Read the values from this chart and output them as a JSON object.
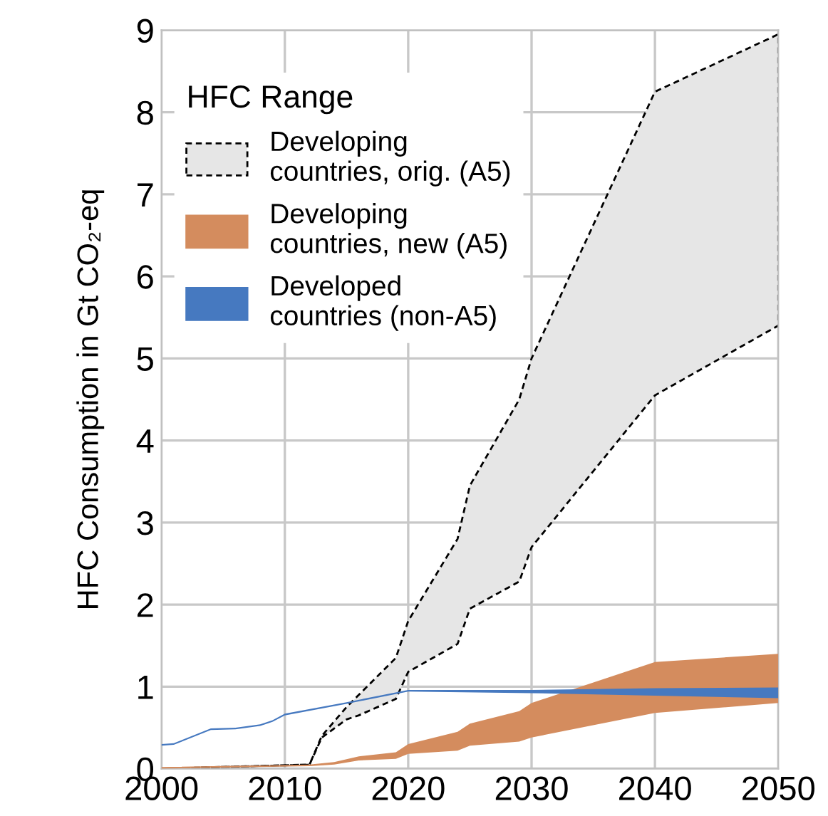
{
  "chart_data": {
    "type": "area",
    "ylabel": "HFC Consumption in Gt CO₂-eq",
    "legend_title": "HFC Range",
    "legend": "top left",
    "grid": true,
    "xlim": [
      2000,
      2050
    ],
    "xticks": [
      2000,
      2010,
      2020,
      2030,
      2040,
      2050
    ],
    "ylim": [
      0,
      9
    ],
    "yticks": [
      0,
      1,
      2,
      3,
      4,
      5,
      6,
      7,
      8,
      9
    ],
    "series": [
      {
        "name": "Developing countries, orig. (A5)",
        "color": "#e6e6e6",
        "line_style": "dashed",
        "x": [
          2000,
          2012,
          2013,
          2015,
          2016,
          2019,
          2020,
          2024,
          2025,
          2029,
          2030,
          2040,
          2050
        ],
        "values": [
          null,
          null,
          null,
          null,
          null,
          null,
          null,
          null,
          null,
          null,
          null,
          null,
          null
        ],
        "upper": [
          0,
          0.05,
          0.4,
          0.75,
          0.9,
          1.35,
          1.8,
          2.8,
          3.45,
          4.5,
          5.0,
          8.25,
          8.95
        ],
        "lower": [
          0,
          0.05,
          0.38,
          0.6,
          0.65,
          0.85,
          1.18,
          1.52,
          1.95,
          2.28,
          2.7,
          4.55,
          5.4
        ]
      },
      {
        "name": "Developing countries, new (A5)",
        "color": "#d48c5e",
        "x": [
          2000,
          2012,
          2014,
          2016,
          2019,
          2020,
          2024,
          2025,
          2029,
          2030,
          2040,
          2050
        ],
        "values": [
          null,
          null,
          null,
          null,
          null,
          null,
          null,
          null,
          null,
          null,
          null,
          null
        ],
        "upper": [
          0.02,
          0.05,
          0.08,
          0.15,
          0.2,
          0.3,
          0.45,
          0.55,
          0.7,
          0.8,
          1.3,
          1.4
        ],
        "lower": [
          0,
          0.03,
          0.05,
          0.1,
          0.12,
          0.18,
          0.22,
          0.28,
          0.33,
          0.38,
          0.68,
          0.8
        ]
      },
      {
        "name": "Developed countries (non-A5)",
        "color": "#4679c0",
        "x": [
          2000,
          2001,
          2004,
          2006,
          2008,
          2009,
          2010,
          2015,
          2020,
          2030,
          2040,
          2050
        ],
        "values": [
          null,
          null,
          null,
          null,
          null,
          null,
          null,
          null,
          null,
          null,
          null,
          null
        ],
        "upper": [
          0.3,
          0.31,
          0.49,
          0.5,
          0.54,
          0.59,
          0.67,
          0.81,
          0.96,
          0.96,
          0.98,
          0.99
        ],
        "lower": [
          0.28,
          0.29,
          0.47,
          0.48,
          0.52,
          0.57,
          0.65,
          0.79,
          0.94,
          0.92,
          0.89,
          0.86
        ]
      }
    ]
  }
}
